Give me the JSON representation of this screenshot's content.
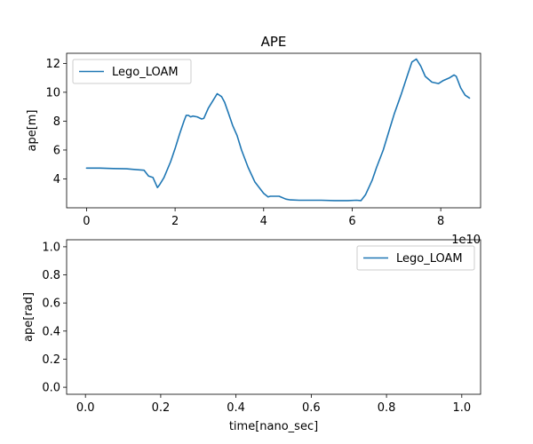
{
  "chart_data": [
    {
      "type": "line",
      "title": "APE",
      "xlabel": "",
      "ylabel": "ape[m]",
      "x_offset_label": "1e10",
      "xlim": [
        -0.45,
        8.9
      ],
      "ylim": [
        2.0,
        12.7
      ],
      "xticks": [
        0,
        2,
        4,
        6,
        8
      ],
      "yticks": [
        4,
        6,
        8,
        10,
        12
      ],
      "grid": false,
      "legend": "upper-left",
      "series": [
        {
          "name": "Lego_LOAM",
          "color": "#1f77b4",
          "x": [
            0.0,
            0.3,
            0.6,
            0.9,
            1.1,
            1.3,
            1.4,
            1.5,
            1.6,
            1.65,
            1.75,
            1.9,
            2.0,
            2.1,
            2.2,
            2.25,
            2.3,
            2.35,
            2.4,
            2.5,
            2.6,
            2.65,
            2.75,
            2.85,
            2.95,
            3.05,
            3.12,
            3.2,
            3.3,
            3.4,
            3.5,
            3.65,
            3.8,
            3.9,
            4.0,
            4.1,
            4.15,
            4.2,
            4.35,
            4.5,
            4.6,
            4.8,
            5.0,
            5.3,
            5.6,
            5.9,
            6.1,
            6.2,
            6.3,
            6.45,
            6.55,
            6.7,
            6.85,
            6.95,
            7.1,
            7.25,
            7.35,
            7.45,
            7.55,
            7.65,
            7.8,
            7.95,
            8.05,
            8.2,
            8.3,
            8.35,
            8.45,
            8.55,
            8.65
          ],
          "y": [
            4.75,
            4.75,
            4.72,
            4.7,
            4.65,
            4.6,
            4.2,
            4.1,
            3.4,
            3.6,
            4.1,
            5.2,
            6.1,
            7.1,
            8.0,
            8.4,
            8.4,
            8.3,
            8.35,
            8.3,
            8.15,
            8.2,
            8.9,
            9.4,
            9.9,
            9.7,
            9.3,
            8.6,
            7.7,
            7.0,
            6.0,
            4.8,
            3.8,
            3.4,
            3.0,
            2.75,
            2.8,
            2.8,
            2.8,
            2.6,
            2.55,
            2.52,
            2.52,
            2.52,
            2.5,
            2.5,
            2.52,
            2.5,
            2.9,
            3.9,
            4.8,
            6.0,
            7.5,
            8.5,
            9.8,
            11.2,
            12.1,
            12.3,
            11.8,
            11.1,
            10.7,
            10.6,
            10.8,
            11.0,
            11.2,
            11.1,
            10.3,
            9.8,
            9.6
          ]
        }
      ]
    },
    {
      "type": "line",
      "title": "",
      "xlabel": "time[nano_sec]",
      "ylabel": "ape[rad]",
      "xlim": [
        -0.05,
        1.05
      ],
      "ylim": [
        -0.05,
        1.05
      ],
      "xticks": [
        0.0,
        0.2,
        0.4,
        0.6,
        0.8,
        1.0
      ],
      "yticks": [
        0.0,
        0.2,
        0.4,
        0.6,
        0.8,
        1.0
      ],
      "grid": false,
      "legend": "upper-right",
      "series": [
        {
          "name": "Lego_LOAM",
          "color": "#1f77b4",
          "x": [],
          "y": []
        }
      ]
    }
  ]
}
